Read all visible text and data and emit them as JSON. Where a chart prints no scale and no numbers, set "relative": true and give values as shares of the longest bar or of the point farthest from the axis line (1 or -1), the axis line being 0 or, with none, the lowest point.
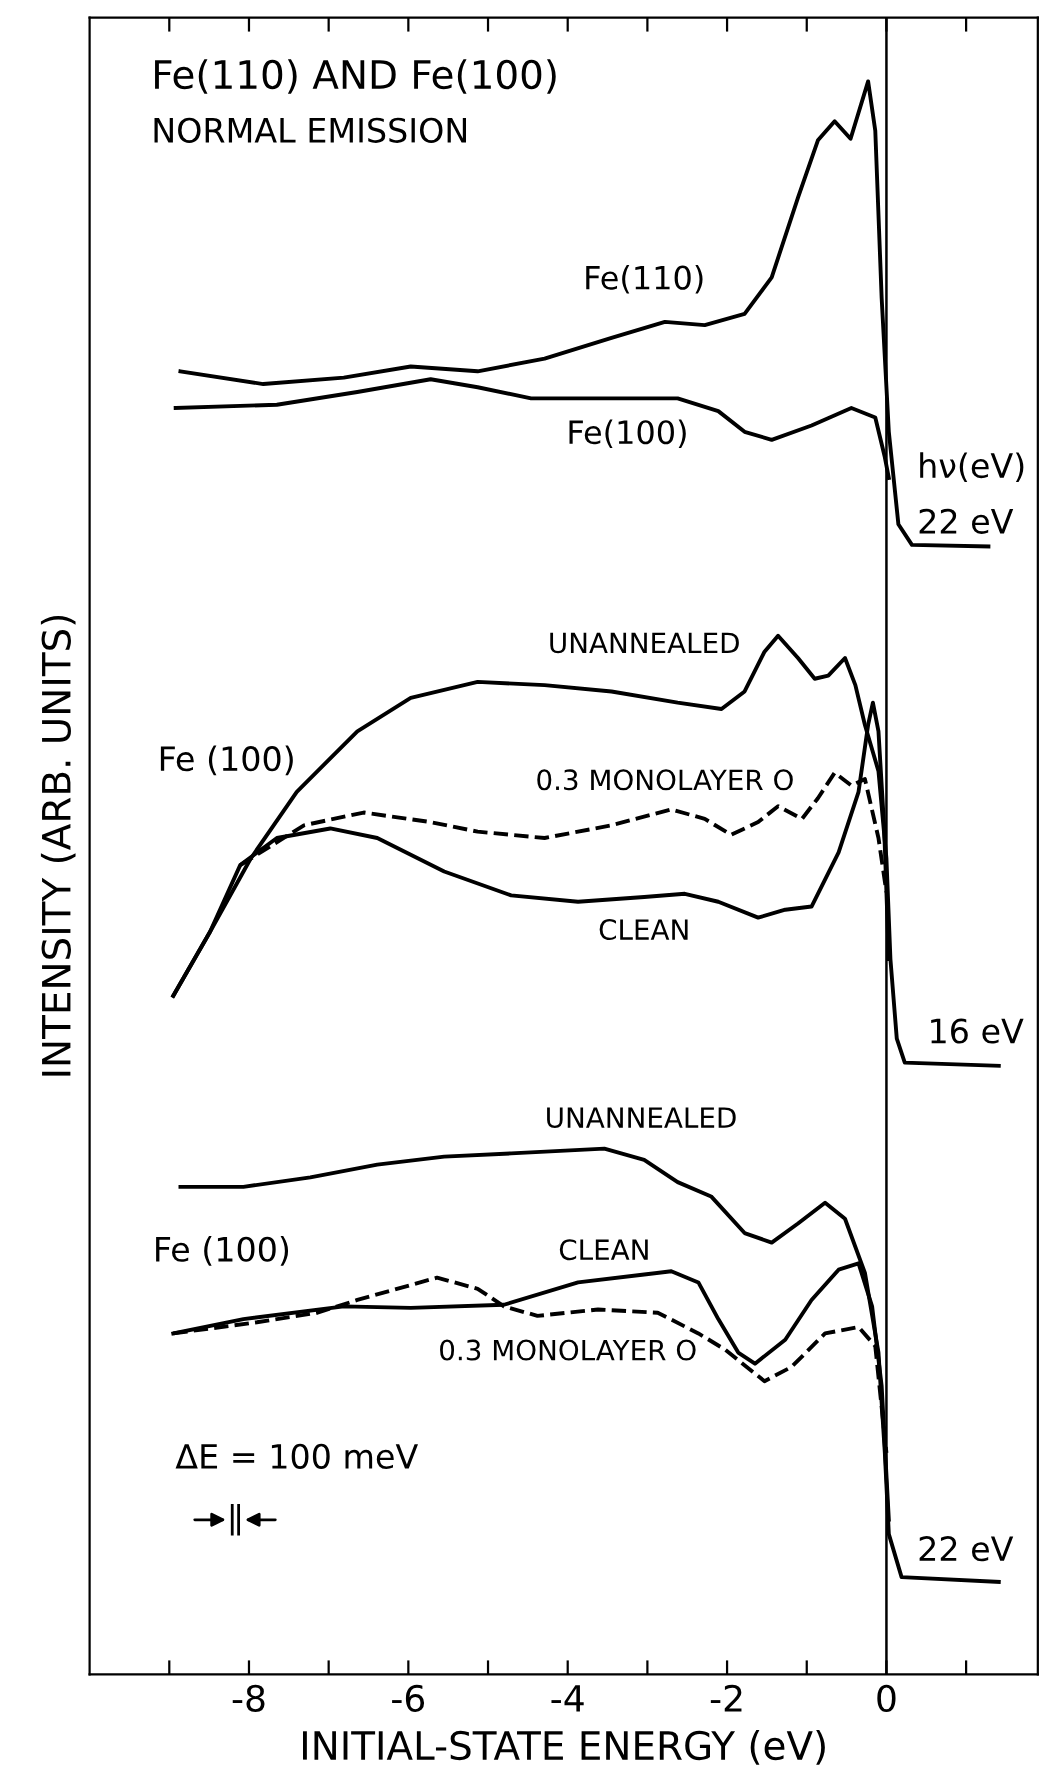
{
  "chart_data": {
    "type": "line",
    "relative": true,
    "title": "Fe(110) AND Fe(100)",
    "subtitle": "NORMAL EMISSION",
    "xlabel": "INITIAL-STATE ENERGY (eV)",
    "ylabel": "INTENSITY (ARB. UNITS)",
    "xlim": [
      -10,
      1.9
    ],
    "xticks": [
      {
        "value": -9,
        "label": null
      },
      -8,
      {
        "value": -7,
        "label": null
      },
      -6,
      {
        "value": -5,
        "label": null
      },
      -4,
      {
        "value": -3,
        "label": null
      },
      -2,
      {
        "value": -1,
        "label": null
      },
      0,
      {
        "value": 1,
        "label": null
      }
    ],
    "grid": false,
    "marker": "none",
    "ref_lines": [
      {
        "axis": "x",
        "value": 0,
        "color": "#000000"
      }
    ],
    "series": [
      {
        "name": "Fe(110)",
        "color": "#000000",
        "line_style": "solid",
        "x": [
          -8.86,
          -7.82,
          -6.81,
          -5.97,
          -5.13,
          -4.29,
          -3.45,
          -2.78,
          -2.28,
          -1.78,
          -1.44,
          -1.11,
          -0.86,
          -0.65,
          -0.45,
          -0.23,
          -0.14,
          -0.06,
          0.03,
          0.15,
          0.32,
          1.28
        ],
        "values": [
          0.818,
          0.81,
          0.814,
          0.821,
          0.818,
          0.826,
          0.839,
          0.849,
          0.847,
          0.854,
          0.877,
          0.927,
          0.963,
          0.975,
          0.964,
          1.0,
          0.969,
          0.864,
          0.78,
          0.722,
          0.709,
          0.708
        ]
      },
      {
        "name": "Fe(100)",
        "color": "#000000",
        "line_style": "solid",
        "x": [
          -8.92,
          -7.65,
          -6.64,
          -5.72,
          -5.13,
          -4.46,
          -3.45,
          -2.62,
          -2.11,
          -1.78,
          -1.44,
          -0.94,
          -0.44,
          -0.14,
          -0.02,
          0.03
        ],
        "values": [
          0.795,
          0.797,
          0.805,
          0.813,
          0.808,
          0.801,
          0.801,
          0.801,
          0.793,
          0.78,
          0.775,
          0.784,
          0.795,
          0.789,
          0.764,
          0.751
        ]
      },
      {
        "name": "UNANNEALED",
        "color": "#000000",
        "line_style": "solid",
        "x": [
          -8.95,
          -8.49,
          -7.98,
          -7.4,
          -6.64,
          -5.97,
          -5.13,
          -4.29,
          -3.45,
          -2.62,
          -2.07,
          -1.78,
          -1.53,
          -1.36,
          -1.11,
          -0.9,
          -0.73,
          -0.52,
          -0.39,
          -0.27,
          -0.1,
          0,
          0.05,
          0.13,
          0.23,
          1.41
        ],
        "values": [
          0.426,
          0.466,
          0.512,
          0.554,
          0.592,
          0.613,
          0.623,
          0.621,
          0.617,
          0.61,
          0.606,
          0.617,
          0.642,
          0.652,
          0.638,
          0.625,
          0.627,
          0.638,
          0.621,
          0.596,
          0.567,
          0.512,
          0.449,
          0.399,
          0.384,
          0.382
        ]
      },
      {
        "name": "CLEAN",
        "color": "#000000",
        "line_style": "solid",
        "x": [
          -8.95,
          -8.49,
          -8.11,
          -7.65,
          -6.98,
          -6.39,
          -5.55,
          -4.71,
          -3.87,
          -3.04,
          -2.53,
          -2.11,
          -1.61,
          -1.27,
          -0.94,
          -0.6,
          -0.35,
          -0.23,
          -0.17,
          -0.1,
          -0.03,
          0.03
        ],
        "values": [
          0.426,
          0.466,
          0.508,
          0.525,
          0.531,
          0.525,
          0.504,
          0.489,
          0.485,
          0.488,
          0.49,
          0.485,
          0.475,
          0.48,
          0.482,
          0.516,
          0.554,
          0.596,
          0.61,
          0.592,
          0.533,
          0.449
        ]
      },
      {
        "name": "0.3 MONOLAYER O",
        "color": "#000000",
        "line_style": "dashed",
        "x": [
          -8.11,
          -7.31,
          -6.56,
          -5.72,
          -5.13,
          -4.29,
          -3.45,
          -2.7,
          -2.28,
          -1.95,
          -1.61,
          -1.36,
          -1.06,
          -0.86,
          -0.65,
          -0.44,
          -0.27,
          -0.1,
          0
        ],
        "values": [
          0.508,
          0.533,
          0.541,
          0.535,
          0.529,
          0.525,
          0.533,
          0.543,
          0.537,
          0.527,
          0.535,
          0.545,
          0.537,
          0.55,
          0.566,
          0.558,
          0.562,
          0.525,
          0.491
        ]
      },
      {
        "name": "UNANNEALED",
        "color": "#000000",
        "line_style": "solid",
        "x": [
          -8.86,
          -8.07,
          -7.23,
          -6.39,
          -5.55,
          -4.71,
          -3.54,
          -3.04,
          -2.62,
          -2.2,
          -1.78,
          -1.44,
          -1.11,
          -0.77,
          -0.52,
          -0.27,
          -0.1,
          -0.02,
          0.03,
          0.19,
          1.41
        ],
        "values": [
          0.306,
          0.306,
          0.312,
          0.32,
          0.325,
          0.327,
          0.33,
          0.323,
          0.309,
          0.3,
          0.277,
          0.271,
          0.283,
          0.296,
          0.286,
          0.252,
          0.202,
          0.139,
          0.088,
          0.061,
          0.058
        ]
      },
      {
        "name": "CLEAN",
        "color": "#000000",
        "line_style": "solid",
        "x": [
          -8.95,
          -8.07,
          -6.81,
          -5.97,
          -4.8,
          -3.87,
          -3.04,
          -2.7,
          -2.36,
          -2.11,
          -1.86,
          -1.65,
          -1.27,
          -0.94,
          -0.6,
          -0.35,
          -0.18,
          -0.06,
          0.03
        ],
        "values": [
          0.214,
          0.223,
          0.231,
          0.23,
          0.232,
          0.246,
          0.251,
          0.253,
          0.246,
          0.223,
          0.202,
          0.195,
          0.21,
          0.235,
          0.254,
          0.258,
          0.231,
          0.181,
          0.097
        ]
      },
      {
        "name": "0.3 MONOLAYER O",
        "color": "#000000",
        "line_style": "dashed",
        "x": [
          -8.95,
          -7.9,
          -7.14,
          -6.64,
          -5.64,
          -5.13,
          -4.8,
          -4.38,
          -3.62,
          -2.87,
          -2.36,
          -2.03,
          -1.53,
          -1.19,
          -0.77,
          -0.35,
          -0.14,
          0
        ],
        "values": [
          0.214,
          0.221,
          0.227,
          0.235,
          0.249,
          0.242,
          0.231,
          0.225,
          0.229,
          0.227,
          0.214,
          0.204,
          0.184,
          0.193,
          0.214,
          0.218,
          0.206,
          0.139
        ]
      }
    ],
    "annotations": [
      "hν(eV)",
      "22 eV",
      "Fe (100)",
      "16 eV",
      "Fe (100)",
      "ΔE = 100 meV",
      "22 eV"
    ]
  }
}
